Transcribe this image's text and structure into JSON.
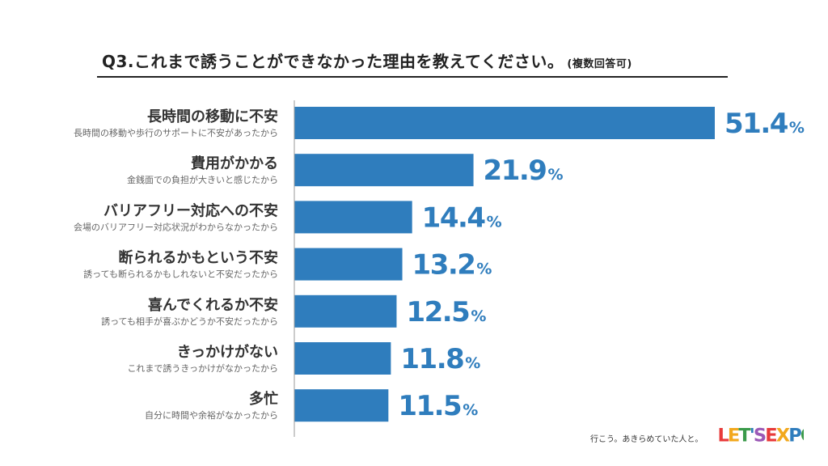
{
  "title": {
    "text": "Q3.これまで誘うことができなかった理由を教えてください。",
    "note": "(複数回答可)"
  },
  "chart_data": {
    "type": "bar",
    "orientation": "horizontal",
    "unit": "%",
    "categories": [
      "長時間の移動に不安",
      "費用がかかる",
      "バリアフリー対応への不安",
      "断られるかもという不安",
      "喜んでくれるか不安",
      "きっかけがない",
      "多忙"
    ],
    "subtitles": [
      "長時間の移動や歩行のサポートに不安があったから",
      "金銭面での負担が大きいと感じたから",
      "会場のバリアフリー対応状況がわからなかったから",
      "誘っても断られるかもしれないと不安だったから",
      "誘っても相手が喜ぶかどうか不安だったから",
      "これまで誘うきっかけがなかったから",
      "自分に時間や余裕がなかったから"
    ],
    "values": [
      51.4,
      21.9,
      14.4,
      13.2,
      12.5,
      11.8,
      11.5
    ],
    "value_labels": [
      "51.4",
      "21.9",
      "14.4",
      "13.2",
      "12.5",
      "11.8",
      "11.5"
    ],
    "bar_color": "#2f7dbd",
    "grid": false
  },
  "footer": {
    "tagline": "行こう。あきらめていた人と。",
    "logo_text": "LET'S EXPO"
  }
}
